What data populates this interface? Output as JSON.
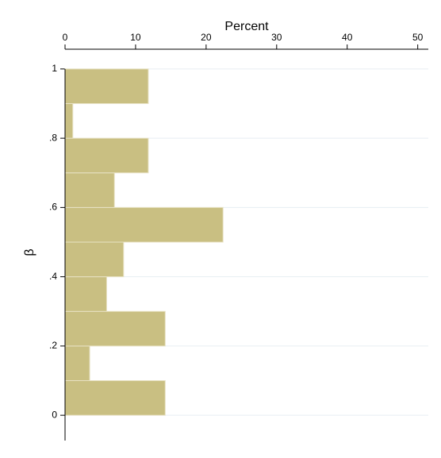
{
  "chart_data": {
    "type": "histogram",
    "orientation": "horizontal",
    "x_label": "Percent",
    "y_label": "β",
    "bins": [
      0,
      0.1,
      0.2,
      0.3,
      0.4,
      0.5,
      0.6,
      0.7,
      0.8,
      0.9,
      1.0
    ],
    "values": [
      14.2,
      3.5,
      14.2,
      5.9,
      8.3,
      22.4,
      7.0,
      11.8,
      1.1,
      11.8
    ],
    "color": "#c9bf82",
    "edgecolor": "#e8e2c4",
    "xlim": [
      0,
      51.5
    ],
    "xticks": [
      0,
      10,
      20,
      30,
      40,
      50
    ],
    "ylim": [
      -0.073,
      1.057
    ],
    "yticks": [
      0,
      {
        "value": 0.2,
        "label": ".2"
      },
      {
        "value": 0.4,
        "label": ".4"
      },
      {
        "value": 0.6,
        "label": ".6"
      },
      {
        "value": 0.8,
        "label": ".8"
      },
      1
    ],
    "grid": true
  }
}
